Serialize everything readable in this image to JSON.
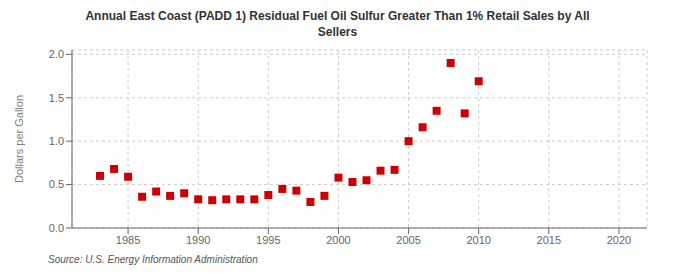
{
  "chart_data": {
    "type": "scatter",
    "title": "Annual East Coast (PADD 1) Residual Fuel Oil Sulfur Greater Than 1% Retail Sales by All\nSellers",
    "ylabel": "Dollars per Gallon",
    "annotations": [
      "Source: U.S. Energy Information Administration"
    ],
    "x": [
      1983,
      1984,
      1985,
      1986,
      1987,
      1988,
      1989,
      1990,
      1991,
      1992,
      1993,
      1994,
      1995,
      1996,
      1997,
      1998,
      1999,
      2000,
      2001,
      2002,
      2003,
      2004,
      2005,
      2006,
      2007,
      2008,
      2009,
      2010
    ],
    "values": [
      0.6,
      0.68,
      0.59,
      0.36,
      0.42,
      0.37,
      0.4,
      0.33,
      0.32,
      0.33,
      0.33,
      0.33,
      0.38,
      0.45,
      0.43,
      0.3,
      0.37,
      0.58,
      0.53,
      0.55,
      0.66,
      0.67,
      1.0,
      1.16,
      1.35,
      1.9,
      1.32,
      1.69
    ],
    "color": "#cc0000",
    "marker": "square",
    "xlim": [
      1981,
      2022
    ],
    "ylim": [
      0.0,
      2.05
    ],
    "xticks": [
      1985,
      1990,
      1995,
      2000,
      2005,
      2010,
      2015,
      2020
    ],
    "yticks": [
      {
        "value": 0,
        "label": "0.0"
      },
      0.5,
      {
        "value": 1,
        "label": "1.0"
      },
      1.5,
      {
        "value": 2,
        "label": "2.0"
      }
    ],
    "grid": true
  }
}
